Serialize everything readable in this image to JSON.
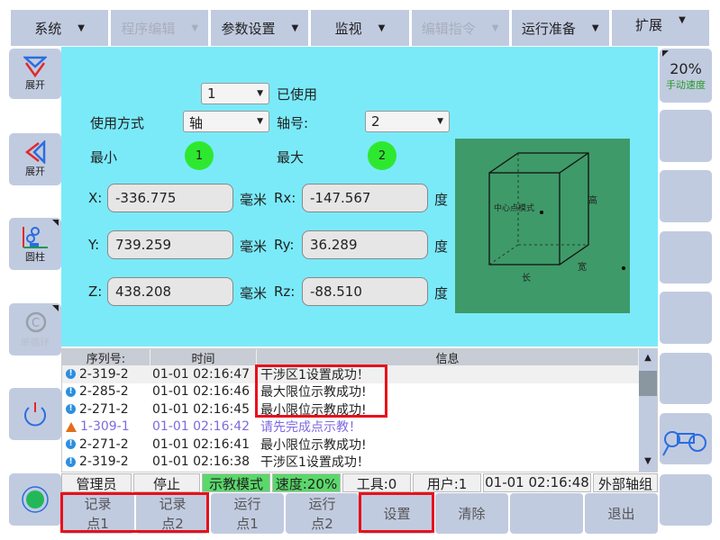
{
  "menu": [
    {
      "label": "系统",
      "enabled": true
    },
    {
      "label": "程序编辑",
      "enabled": false
    },
    {
      "label": "参数设置",
      "enabled": true
    },
    {
      "label": "监视",
      "enabled": true
    },
    {
      "label": "编辑指令",
      "enabled": false
    },
    {
      "label": "运行准备",
      "enabled": true
    },
    {
      "label": "扩展",
      "enabled": true
    }
  ],
  "left": {
    "expand1": "展开",
    "expand2": "展开",
    "coord": "圆柱",
    "cycle": "单循环"
  },
  "right": {
    "speed": "20%",
    "speed_label": "手动速度"
  },
  "form": {
    "zone_value": "1",
    "zone_status": "已使用",
    "mode_label": "使用方式",
    "mode_value": "轴",
    "axis_label": "轴号:",
    "axis_value": "2",
    "min_label": "最小",
    "min_point": "1",
    "max_label": "最大",
    "max_point": "2",
    "x_label": "X:",
    "x": "-336.775",
    "y_label": "Y:",
    "y": "739.259",
    "z_label": "Z:",
    "z": "438.208",
    "mm": "毫米",
    "rx_label": "Rx:",
    "rx": "-147.567",
    "ry_label": "Ry:",
    "ry": "36.289",
    "rz_label": "Rz:",
    "rz": "-88.510",
    "deg": "度"
  },
  "diagram": {
    "center": "中心点模式",
    "height": "高",
    "width": "宽",
    "length": "长"
  },
  "log": {
    "headers": [
      "序列号:",
      "时间",
      "信息"
    ],
    "rows": [
      {
        "type": "info",
        "id": "2-319-2",
        "time": "01-01 02:16:47",
        "msg": "干涉区1设置成功！"
      },
      {
        "type": "info",
        "id": "2-285-2",
        "time": "01-01 02:16:46",
        "msg": "最大限位示教成功!"
      },
      {
        "type": "info",
        "id": "2-271-2",
        "time": "01-01 02:16:45",
        "msg": "最小限位示教成功!"
      },
      {
        "type": "warn",
        "id": "1-309-1",
        "time": "01-01 02:16:42",
        "msg": "请先完成点示教！"
      },
      {
        "type": "info",
        "id": "2-271-2",
        "time": "01-01 02:16:41",
        "msg": "最小限位示教成功!"
      },
      {
        "type": "info",
        "id": "2-319-2",
        "time": "01-01 02:16:38",
        "msg": "干涉区1设置成功！"
      }
    ]
  },
  "status": {
    "user": "管理员",
    "state": "停止",
    "mode": "示教模式",
    "speed": "速度:20%",
    "tool": "工具:0",
    "ucs": "用户:1",
    "time": "01-01 02:16:48",
    "ext": "外部轴组"
  },
  "bottom": [
    [
      "记录",
      "点1"
    ],
    [
      "记录",
      "点2"
    ],
    [
      "运行",
      "点1"
    ],
    [
      "运行",
      "点2"
    ],
    [
      "设置"
    ],
    [
      "清除"
    ],
    [
      ""
    ],
    [
      "退出"
    ]
  ],
  "colors": {
    "panel": "#7aeaf9",
    "button": "#c1cbe0",
    "highlight": "#e8101a",
    "diagram": "#3e9a68"
  }
}
